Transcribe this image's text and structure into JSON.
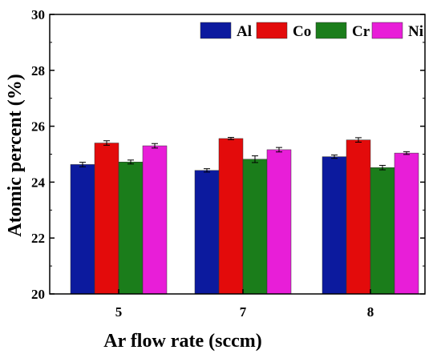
{
  "chart_data": {
    "type": "bar",
    "categories": [
      "5",
      "7",
      "8"
    ],
    "series": [
      {
        "name": "Al",
        "color": "#0c1a9e",
        "values": [
          24.63,
          24.42,
          24.91
        ],
        "errors": [
          0.08,
          0.06,
          0.06
        ]
      },
      {
        "name": "Co",
        "color": "#e30b0b",
        "values": [
          25.4,
          25.56,
          25.51
        ],
        "errors": [
          0.08,
          0.04,
          0.08
        ]
      },
      {
        "name": "Cr",
        "color": "#1b7d1b",
        "values": [
          24.72,
          24.82,
          24.52
        ],
        "errors": [
          0.07,
          0.12,
          0.08
        ]
      },
      {
        "name": "Ni",
        "color": "#e81ed8",
        "values": [
          25.3,
          25.16,
          25.04
        ],
        "errors": [
          0.08,
          0.08,
          0.05
        ]
      }
    ],
    "xlabel": "Ar flow rate (sccm)",
    "ylabel": "Atomic percent (%)",
    "ylim": [
      20,
      30
    ],
    "yticks": [
      "20",
      "22",
      "24",
      "26",
      "28",
      "30"
    ],
    "legend_position": "top-right",
    "grid": false
  }
}
